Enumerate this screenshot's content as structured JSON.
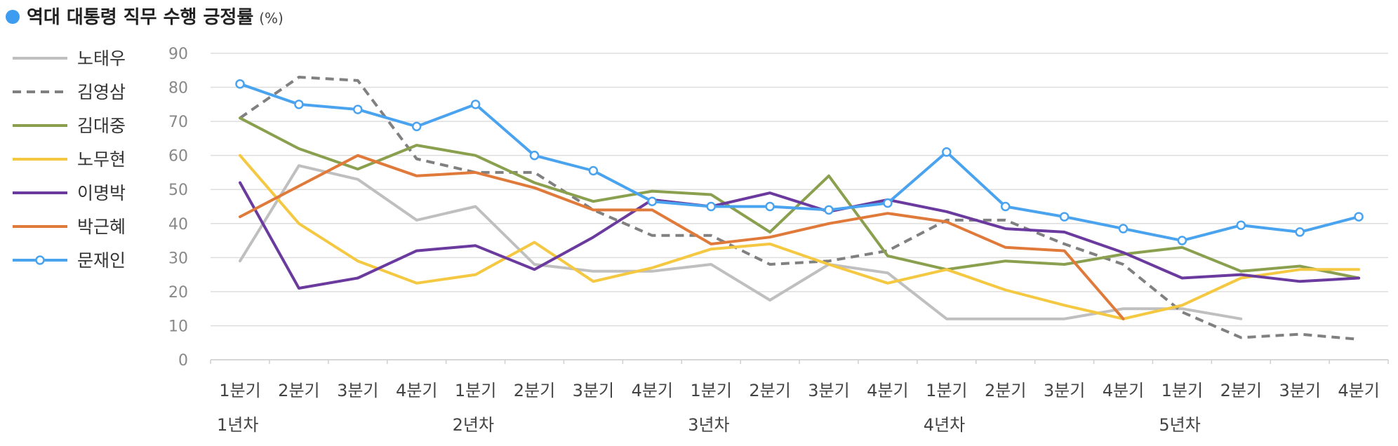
{
  "chart_data": {
    "type": "line",
    "title": "역대 대통령 직무 수행 긍정률",
    "title_unit": "(%)",
    "title_marker_color": "#3d9cf0",
    "xlabel": "",
    "ylabel": "",
    "ylim": [
      0,
      90
    ],
    "yticks": [
      0,
      10,
      20,
      30,
      40,
      50,
      60,
      70,
      80,
      90
    ],
    "grid": true,
    "legend_position": "left",
    "categories": [
      "1분기",
      "2분기",
      "3분기",
      "4분기",
      "1분기",
      "2분기",
      "3분기",
      "4분기",
      "1분기",
      "2분기",
      "3분기",
      "4분기",
      "1분기",
      "2분기",
      "3분기",
      "4분기",
      "1분기",
      "2분기",
      "3분기",
      "4분기"
    ],
    "year_groups": [
      {
        "label": "1년차",
        "start_index": 0
      },
      {
        "label": "2년차",
        "start_index": 4
      },
      {
        "label": "3년차",
        "start_index": 8
      },
      {
        "label": "4년차",
        "start_index": 12
      },
      {
        "label": "5년차",
        "start_index": 16
      }
    ],
    "series": [
      {
        "name": "노태우",
        "color": "#bfbfbf",
        "dash": "solid",
        "marker": "none",
        "values": [
          29,
          57,
          53,
          41,
          45,
          28,
          26,
          26,
          28,
          17.5,
          28,
          25.5,
          12,
          12,
          12,
          15,
          15,
          12,
          null,
          null
        ]
      },
      {
        "name": "김영삼",
        "color": "#808080",
        "dash": "dashed",
        "marker": "none",
        "values": [
          71,
          83,
          82,
          59,
          55,
          55,
          44,
          36.5,
          36.5,
          28,
          29,
          32,
          41,
          41,
          34,
          28,
          14,
          6.5,
          7.5,
          6
        ]
      },
      {
        "name": "김대중",
        "color": "#8aa04f",
        "dash": "solid",
        "marker": "none",
        "values": [
          71,
          62,
          56,
          63,
          60,
          52,
          46.5,
          49.5,
          48.5,
          37.5,
          54,
          30.5,
          26.5,
          29,
          28,
          31,
          33,
          26,
          27.5,
          24
        ]
      },
      {
        "name": "노무현",
        "color": "#f5c842",
        "dash": "solid",
        "marker": "none",
        "values": [
          60,
          40,
          29,
          22.5,
          25,
          34.5,
          23,
          27,
          32.5,
          34,
          28,
          22.5,
          26.5,
          20.5,
          16,
          12,
          16,
          24,
          26.5,
          26.5
        ]
      },
      {
        "name": "이명박",
        "color": "#6b3a9e",
        "dash": "solid",
        "marker": "none",
        "values": [
          52,
          21,
          24,
          32,
          33.5,
          26.5,
          36,
          47,
          45,
          49,
          43.5,
          47,
          43.5,
          38.5,
          37.5,
          31.5,
          24,
          25,
          23,
          24
        ]
      },
      {
        "name": "박근혜",
        "color": "#e07a3a",
        "dash": "solid",
        "marker": "none",
        "values": [
          42,
          51,
          60,
          54,
          55,
          50.5,
          44,
          44,
          34,
          36,
          40,
          43,
          40.5,
          33,
          32,
          12,
          null,
          null,
          null,
          null
        ]
      },
      {
        "name": "문재인",
        "color": "#4aa3ee",
        "dash": "solid",
        "marker": "circle",
        "values": [
          81,
          75,
          73.5,
          68.5,
          75,
          60,
          55.5,
          46.5,
          45,
          45,
          44,
          46,
          61,
          45,
          42,
          38.5,
          35,
          39.5,
          37.5,
          42
        ]
      }
    ]
  }
}
